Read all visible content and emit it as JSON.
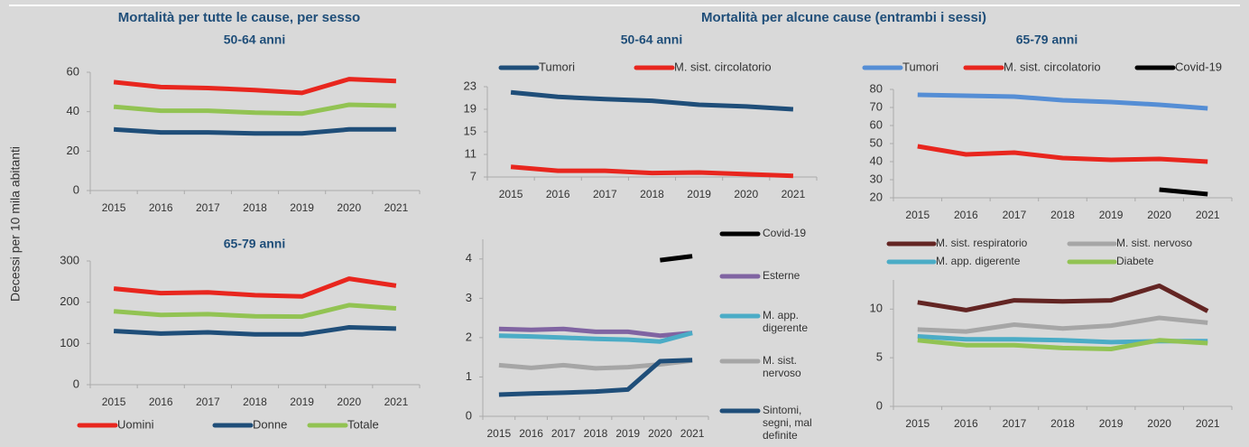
{
  "section_titles": [
    "Mortalità per tutte le cause, per sesso",
    "Mortalità per alcune cause (entrambi i sessi)"
  ],
  "y_label": "Decessi per 10 mila abitanti",
  "chart_data": [
    {
      "type": "line",
      "title": "50-64 anni",
      "categories": [
        "2015",
        "2016",
        "2017",
        "2018",
        "2019",
        "2020",
        "2021"
      ],
      "ylim": [
        0,
        60
      ],
      "yticks": [
        0,
        20,
        40,
        60
      ],
      "series": [
        {
          "color": "#e8261e",
          "values": [
            55,
            52.5,
            52,
            51,
            49.5,
            56.5,
            55.5
          ]
        },
        {
          "color": "#1f4e79",
          "values": [
            31,
            29.5,
            29.5,
            29,
            29,
            31,
            31
          ]
        },
        {
          "color": "#92c353",
          "values": [
            42.5,
            40.5,
            40.5,
            39.5,
            39,
            43.5,
            43
          ]
        }
      ]
    },
    {
      "type": "line",
      "title": "65-79 anni",
      "categories": [
        "2015",
        "2016",
        "2017",
        "2018",
        "2019",
        "2020",
        "2021"
      ],
      "ylim": [
        0,
        300
      ],
      "yticks": [
        0,
        100,
        200,
        300
      ],
      "legend": "bottom",
      "series": [
        {
          "name": "Uomini",
          "color": "#e8261e",
          "values": [
            233,
            222,
            224,
            217,
            214,
            257,
            240
          ]
        },
        {
          "name": "Donne",
          "color": "#1f4e79",
          "values": [
            130,
            124,
            127,
            122,
            122,
            139,
            136
          ]
        },
        {
          "name": "Totale",
          "color": "#92c353",
          "values": [
            178,
            169,
            171,
            166,
            165,
            193,
            185
          ]
        }
      ]
    },
    {
      "type": "line",
      "title": "50-64 anni",
      "categories": [
        "2015",
        "2016",
        "2017",
        "2018",
        "2019",
        "2020",
        "2021"
      ],
      "ylim": [
        7,
        23
      ],
      "yticks": [
        7,
        11,
        15,
        19,
        23
      ],
      "legend": "top",
      "series": [
        {
          "name": "Tumori",
          "color": "#1f4e79",
          "values": [
            22,
            21.2,
            20.8,
            20.5,
            19.8,
            19.5,
            19
          ]
        },
        {
          "name": "M. sist. circolatorio",
          "color": "#e8261e",
          "values": [
            8.8,
            8.1,
            8.1,
            7.7,
            7.8,
            7.5,
            7.2
          ]
        }
      ]
    },
    {
      "type": "line",
      "categories": [
        "2015",
        "2016",
        "2017",
        "2018",
        "2019",
        "2020",
        "2021"
      ],
      "ylim": [
        0,
        4.5
      ],
      "yticks": [
        0,
        1,
        2,
        3,
        4
      ],
      "legend": "right",
      "series": [
        {
          "name": "Covid-19",
          "color": "#000000",
          "values": [
            null,
            null,
            null,
            null,
            null,
            3.97,
            4.07
          ]
        },
        {
          "name": "Esterne",
          "color": "#8064a2",
          "values": [
            2.22,
            2.2,
            2.22,
            2.15,
            2.15,
            2.05,
            2.12
          ]
        },
        {
          "name": "M. app. digerente",
          "color": "#4bacc6",
          "values": [
            2.05,
            2.03,
            2.0,
            1.97,
            1.95,
            1.9,
            2.12
          ]
        },
        {
          "name": "M. sist. nervoso",
          "color": "#a6a6a6",
          "values": [
            1.3,
            1.23,
            1.3,
            1.22,
            1.25,
            1.32,
            1.42
          ]
        },
        {
          "name": "Sintomi, segni, mal definite",
          "color": "#1f4e79",
          "values": [
            0.55,
            0.58,
            0.6,
            0.63,
            0.68,
            1.4,
            1.43
          ]
        }
      ]
    },
    {
      "type": "line",
      "title": "65-79 anni",
      "categories": [
        "2015",
        "2016",
        "2017",
        "2018",
        "2019",
        "2020",
        "2021"
      ],
      "ylim": [
        20,
        80
      ],
      "yticks": [
        20,
        30,
        40,
        50,
        60,
        70,
        80
      ],
      "legend": "top",
      "series": [
        {
          "name": "Tumori",
          "color": "#558ed5",
          "values": [
            77,
            76.5,
            76,
            74,
            73,
            71.5,
            69.5
          ]
        },
        {
          "name": "M. sist. circolatorio",
          "color": "#e8261e",
          "values": [
            48.5,
            44,
            45,
            42,
            41,
            41.5,
            40
          ]
        },
        {
          "name": "Covid-19",
          "color": "#000000",
          "values": [
            null,
            null,
            null,
            null,
            null,
            24.5,
            22
          ]
        }
      ]
    },
    {
      "type": "line",
      "categories": [
        "2015",
        "2016",
        "2017",
        "2018",
        "2019",
        "2020",
        "2021"
      ],
      "ylim": [
        0,
        13
      ],
      "yticks": [
        0,
        5,
        10
      ],
      "legend": "top",
      "series": [
        {
          "name": "M. sist. respiratorio",
          "color": "#632523",
          "values": [
            10.7,
            9.9,
            10.9,
            10.8,
            10.9,
            12.4,
            9.8
          ]
        },
        {
          "name": "M. sist. nervoso",
          "color": "#a6a6a6",
          "values": [
            7.9,
            7.7,
            8.4,
            8.0,
            8.3,
            9.1,
            8.6
          ]
        },
        {
          "name": "M. app. digerente",
          "color": "#4bacc6",
          "values": [
            7.2,
            6.9,
            6.9,
            6.8,
            6.6,
            6.7,
            6.7
          ]
        },
        {
          "name": "Diabete",
          "color": "#92c353",
          "values": [
            6.8,
            6.3,
            6.3,
            6.0,
            5.9,
            6.8,
            6.5
          ]
        }
      ]
    }
  ]
}
